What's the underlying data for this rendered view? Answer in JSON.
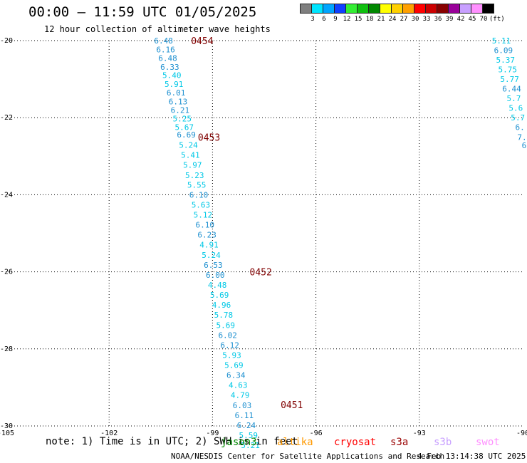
{
  "header": {
    "title": "00:00 – 11:59 UTC 01/05/2025",
    "subtitle": "12 hour collection of altimeter wave heights"
  },
  "legend": {
    "labels": [
      "3",
      "6",
      "9",
      "12",
      "15",
      "18",
      "21",
      "24",
      "27",
      "30",
      "33",
      "36",
      "39",
      "42",
      "45",
      "70"
    ],
    "unit": "(ft)",
    "colors": [
      "#7f7f7f",
      "#00e5ff",
      "#00a5ff",
      "#1040ff",
      "#33ee33",
      "#10c010",
      "#008800",
      "#ffff00",
      "#ffd000",
      "#ffa000",
      "#ff0000",
      "#cc0000",
      "#880000",
      "#990099",
      "#c8a0ff",
      "#ff90ff",
      "#000000"
    ]
  },
  "map": {
    "x_ticks": [
      "-105",
      "-102",
      "-99",
      "-96",
      "-93",
      "-90"
    ],
    "y_ticks": [
      "-20",
      "-22",
      "-24",
      "-26",
      "-28",
      "-30"
    ],
    "lon_range": [
      -105,
      -90
    ],
    "lat_range": [
      -30,
      -20
    ],
    "track_color": "#00c8e6",
    "time_color": "#800000",
    "main_track": [
      {
        "lon": -100.42,
        "lat": -20.0,
        "v": "6.48",
        "c": "#1e90d0"
      },
      {
        "lon": -100.36,
        "lat": -20.23,
        "v": "6.16",
        "c": "#1e90d0"
      },
      {
        "lon": -100.3,
        "lat": -20.45,
        "v": "6.48",
        "c": "#1e90d0"
      },
      {
        "lon": -100.24,
        "lat": -20.68,
        "v": "6.33",
        "c": "#1e90d0"
      },
      {
        "lon": -100.18,
        "lat": -20.9,
        "v": "5.40",
        "c": "#00c8e6"
      },
      {
        "lon": -100.12,
        "lat": -21.13,
        "v": "5.91",
        "c": "#00c8e6"
      },
      {
        "lon": -100.06,
        "lat": -21.35,
        "v": "6.01",
        "c": "#1e90d0"
      },
      {
        "lon": -100.0,
        "lat": -21.58,
        "v": "6.13",
        "c": "#1e90d0"
      },
      {
        "lon": -99.94,
        "lat": -21.8,
        "v": "6.21",
        "c": "#1e90d0"
      },
      {
        "lon": -99.88,
        "lat": -22.02,
        "v": "5.25",
        "c": "#00c8e6"
      },
      {
        "lon": -99.82,
        "lat": -22.25,
        "v": "5.67",
        "c": "#00c8e6"
      },
      {
        "lon": -99.76,
        "lat": -22.44,
        "v": "6.69",
        "c": "#1e90d0"
      },
      {
        "lon": -99.7,
        "lat": -22.71,
        "v": "5.24",
        "c": "#00c8e6"
      },
      {
        "lon": -99.64,
        "lat": -22.97,
        "v": "5.41",
        "c": "#00c8e6"
      },
      {
        "lon": -99.58,
        "lat": -23.23,
        "v": "5.97",
        "c": "#00c8e6"
      },
      {
        "lon": -99.52,
        "lat": -23.49,
        "v": "5.23",
        "c": "#00c8e6"
      },
      {
        "lon": -99.46,
        "lat": -23.74,
        "v": "5.55",
        "c": "#00c8e6"
      },
      {
        "lon": -99.4,
        "lat": -24.0,
        "v": "6.10",
        "c": "#1e90d0"
      },
      {
        "lon": -99.34,
        "lat": -24.26,
        "v": "5.63",
        "c": "#00c8e6"
      },
      {
        "lon": -99.28,
        "lat": -24.52,
        "v": "5.12",
        "c": "#00c8e6"
      },
      {
        "lon": -99.22,
        "lat": -24.78,
        "v": "6.10",
        "c": "#1e90d0"
      },
      {
        "lon": -99.16,
        "lat": -25.04,
        "v": "6.23",
        "c": "#1e90d0"
      },
      {
        "lon": -99.1,
        "lat": -25.3,
        "v": "4.91",
        "c": "#00c8e6"
      },
      {
        "lon": -99.04,
        "lat": -25.56,
        "v": "5.24",
        "c": "#00c8e6"
      },
      {
        "lon": -98.98,
        "lat": -25.82,
        "v": "6.53",
        "c": "#1e90d0"
      },
      {
        "lon": -98.92,
        "lat": -26.08,
        "v": "6.00",
        "c": "#1e90d0"
      },
      {
        "lon": -98.86,
        "lat": -26.34,
        "v": "4.48",
        "c": "#00c8e6"
      },
      {
        "lon": -98.8,
        "lat": -26.6,
        "v": "5.69",
        "c": "#00c8e6"
      },
      {
        "lon": -98.74,
        "lat": -26.86,
        "v": "4.96",
        "c": "#00c8e6"
      },
      {
        "lon": -98.68,
        "lat": -27.12,
        "v": "5.78",
        "c": "#00c8e6"
      },
      {
        "lon": -98.62,
        "lat": -27.38,
        "v": "5.69",
        "c": "#00c8e6"
      },
      {
        "lon": -98.56,
        "lat": -27.64,
        "v": "6.02",
        "c": "#1e90d0"
      },
      {
        "lon": -98.5,
        "lat": -27.9,
        "v": "6.12",
        "c": "#1e90d0"
      },
      {
        "lon": -98.44,
        "lat": -28.16,
        "v": "5.93",
        "c": "#00c8e6"
      },
      {
        "lon": -98.38,
        "lat": -28.42,
        "v": "5.69",
        "c": "#00c8e6"
      },
      {
        "lon": -98.32,
        "lat": -28.68,
        "v": "6.34",
        "c": "#1e90d0"
      },
      {
        "lon": -98.26,
        "lat": -28.94,
        "v": "4.63",
        "c": "#00c8e6"
      },
      {
        "lon": -98.2,
        "lat": -29.2,
        "v": "4.79",
        "c": "#00c8e6"
      },
      {
        "lon": -98.14,
        "lat": -29.46,
        "v": "6.03",
        "c": "#1e90d0"
      },
      {
        "lon": -98.08,
        "lat": -29.72,
        "v": "6.11",
        "c": "#1e90d0"
      },
      {
        "lon": -98.02,
        "lat": -29.98,
        "v": "6.24",
        "c": "#1e90d0"
      },
      {
        "lon": -97.96,
        "lat": -30.24,
        "v": "5.59",
        "c": "#00c8e6"
      },
      {
        "lon": -97.9,
        "lat": -30.5,
        "v": "5.21",
        "c": "#00c8e6"
      }
    ],
    "right_track": [
      {
        "lon": -90.62,
        "lat": -20.0,
        "v": "5.11",
        "c": "#00c8e6"
      },
      {
        "lon": -90.56,
        "lat": -20.25,
        "v": "6.09",
        "c": "#1e90d0"
      },
      {
        "lon": -90.5,
        "lat": -20.5,
        "v": "5.37",
        "c": "#00c8e6"
      },
      {
        "lon": -90.44,
        "lat": -20.75,
        "v": "5.75",
        "c": "#00c8e6"
      },
      {
        "lon": -90.38,
        "lat": -21.0,
        "v": "5.77",
        "c": "#00c8e6"
      },
      {
        "lon": -90.32,
        "lat": -21.25,
        "v": "6.44",
        "c": "#1e90d0"
      },
      {
        "lon": -90.26,
        "lat": -21.5,
        "v": "5.7",
        "c": "#00c8e6"
      },
      {
        "lon": -90.2,
        "lat": -21.75,
        "v": "5.6",
        "c": "#00c8e6"
      },
      {
        "lon": -90.14,
        "lat": -22.0,
        "v": "5.7",
        "c": "#00c8e6"
      },
      {
        "lon": -90.08,
        "lat": -22.25,
        "v": "6.",
        "c": "#1e90d0"
      },
      {
        "lon": -90.02,
        "lat": -22.5,
        "v": "7.",
        "c": "#1e90d0"
      },
      {
        "lon": -89.96,
        "lat": -22.72,
        "v": "6",
        "c": "#1e90d0"
      }
    ],
    "time_labels": [
      {
        "text": "0454",
        "lon": -99.3,
        "lat": -20.0
      },
      {
        "text": "0453",
        "lon": -99.1,
        "lat": -22.5
      },
      {
        "text": "0452",
        "lon": -97.6,
        "lat": -26.0
      },
      {
        "text": "0451",
        "lon": -96.7,
        "lat": -29.45
      }
    ]
  },
  "footer": {
    "note": "note: 1) Time is in UTC; 2) SWH is in feet",
    "satellites": [
      {
        "name": "jason3",
        "color": "#008800"
      },
      {
        "name": "altika",
        "color": "#ff9900"
      },
      {
        "name": "cryosat",
        "color": "#ff0000"
      },
      {
        "name": "s3a",
        "color": "#990000"
      },
      {
        "name": "s3b",
        "color": "#c8a0ff"
      },
      {
        "name": "swot",
        "color": "#ff90ff"
      }
    ],
    "credit": "NOAA/NESDIS Center for Satellite Applications and Research",
    "stamp": "4 Feb 13:14:38 UTC 2025"
  }
}
